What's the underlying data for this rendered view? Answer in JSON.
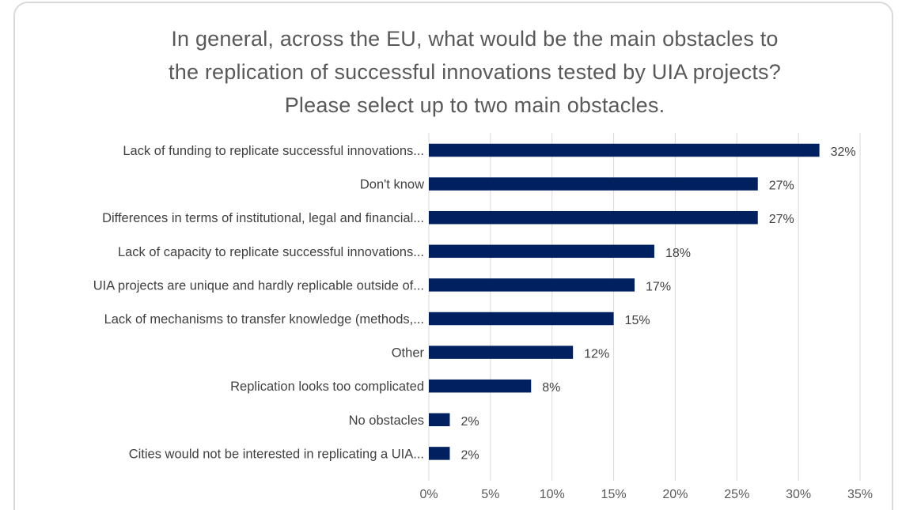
{
  "chart_data": {
    "type": "bar",
    "orientation": "horizontal",
    "title_lines": [
      "In general, across the EU, what would be the main obstacles to",
      "the replication of successful innovations tested by UIA projects?",
      "Please select up to two main obstacles."
    ],
    "categories": [
      "Lack of funding to replicate successful innovations...",
      "Don't know",
      "Differences in terms of institutional, legal and financial...",
      "Lack of capacity to replicate successful innovations...",
      "UIA projects are unique and hardly replicable outside of...",
      "Lack of mechanisms to transfer knowledge (methods,...",
      "Other",
      "Replication looks too complicated",
      "No obstacles",
      "Cities would not be interested in replicating a UIA..."
    ],
    "values": [
      31.7,
      26.7,
      26.7,
      18.3,
      16.7,
      15.0,
      11.7,
      8.3,
      1.7,
      1.7
    ],
    "value_labels": [
      "32%",
      "27%",
      "27%",
      "18%",
      "17%",
      "15%",
      "12%",
      "8%",
      "2%",
      "2%"
    ],
    "x_ticks": [
      "0%",
      "5%",
      "10%",
      "15%",
      "20%",
      "25%",
      "30%",
      "35%"
    ],
    "xlim": [
      0,
      35
    ],
    "grid": true,
    "legend": "none",
    "bar_color": "#002060",
    "grid_color": "#d9d9d9"
  }
}
